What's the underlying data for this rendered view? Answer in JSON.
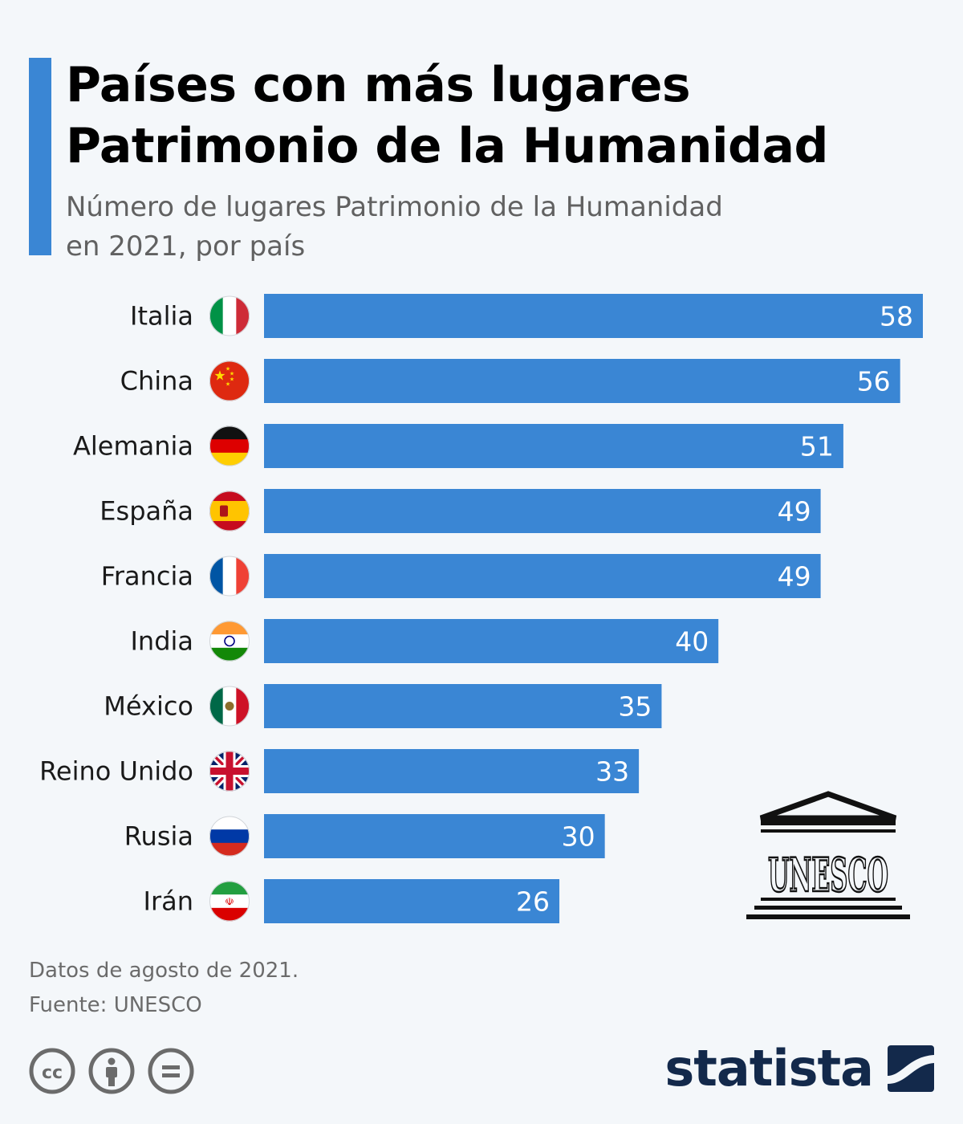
{
  "header": {
    "title_line1": "Países con más lugares",
    "title_line2": "Patrimonio de la Humanidad",
    "subtitle_line1": "Número de lugares Patrimonio de la Humanidad",
    "subtitle_line2": "en 2021, por país"
  },
  "chart_data": {
    "type": "bar",
    "orientation": "horizontal",
    "title": "Países con más lugares Patrimonio de la Humanidad",
    "subtitle": "Número de lugares Patrimonio de la Humanidad en 2021, por país",
    "categories": [
      "Italia",
      "China",
      "Alemania",
      "España",
      "Francia",
      "India",
      "México",
      "Reino Unido",
      "Rusia",
      "Irán"
    ],
    "values": [
      58,
      56,
      51,
      49,
      49,
      40,
      35,
      33,
      30,
      26
    ],
    "flags": [
      "italy-flag-icon",
      "china-flag-icon",
      "germany-flag-icon",
      "spain-flag-icon",
      "france-flag-icon",
      "india-flag-icon",
      "mexico-flag-icon",
      "uk-flag-icon",
      "russia-flag-icon",
      "iran-flag-icon"
    ],
    "xlim": [
      0,
      58
    ],
    "bar_color": "#3a86d4",
    "value_label_color": "#ffffff",
    "xlabel": "",
    "ylabel": ""
  },
  "logo": {
    "unesco_text": "UNESCO",
    "icon": "unesco-temple-icon"
  },
  "footer": {
    "note": "Datos de agosto de 2021.",
    "source": "Fuente: UNESCO",
    "brand": "statista",
    "license_icons": [
      "cc-icon",
      "attribution-icon",
      "no-derivatives-icon"
    ]
  },
  "colors": {
    "accent": "#3a86d4",
    "background": "#f4f7fa",
    "brand": "#13294b"
  }
}
